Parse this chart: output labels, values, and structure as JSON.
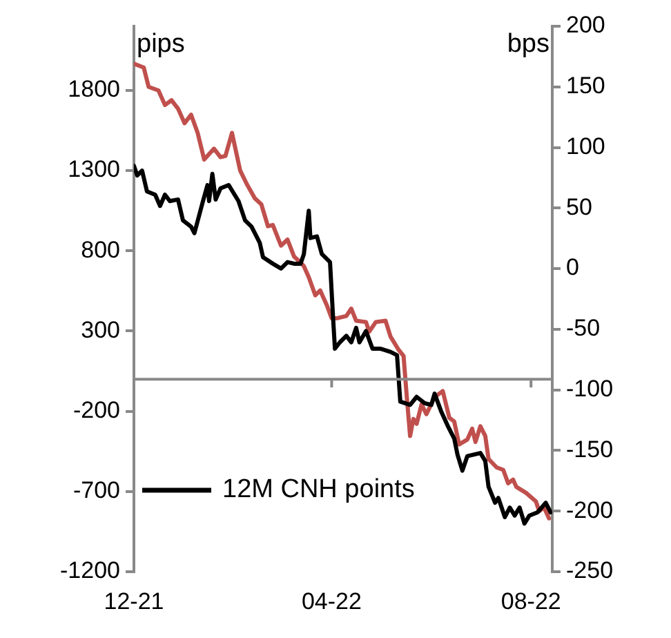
{
  "chart_data": {
    "type": "line",
    "ylabel": "pips",
    "y2label": "bps",
    "xlim": [
      "2021-12-01",
      "2022-08-14"
    ],
    "xticks": [
      {
        "value": "2021-12-01",
        "label": "12-21"
      },
      {
        "value": "2022-04-01",
        "label": "04-22"
      },
      {
        "value": "2022-08-01",
        "label": "08-22"
      }
    ],
    "ylim": [
      -1200,
      2200
    ],
    "yticks": [
      -1200,
      -700,
      -200,
      300,
      800,
      1300,
      1800
    ],
    "y2lim": [
      -250,
      200
    ],
    "y2ticks": [
      -250,
      -200,
      -150,
      -100,
      -50,
      0,
      50,
      100,
      150,
      200
    ],
    "grid": false,
    "legend": "bottom left",
    "marker": "none",
    "line_style": "solid",
    "series": [
      {
        "name": "12M CNH points",
        "color": "#000000",
        "x": [
          "2021-12-01",
          "2021-12-03",
          "2021-12-06",
          "2021-12-09",
          "2021-12-14",
          "2021-12-17",
          "2021-12-20",
          "2021-12-23",
          "2021-12-28",
          "2021-12-31",
          "2022-01-05",
          "2022-01-07",
          "2022-01-12",
          "2022-01-15",
          "2022-01-16",
          "2022-01-18",
          "2022-01-20",
          "2022-01-23",
          "2022-01-28",
          "2022-02-03",
          "2022-02-07",
          "2022-02-11",
          "2022-02-16",
          "2022-02-18",
          "2022-02-24",
          "2022-03-01",
          "2022-03-05",
          "2022-03-09",
          "2022-03-13",
          "2022-03-15",
          "2022-03-18",
          "2022-03-19",
          "2022-03-23",
          "2022-03-26",
          "2022-03-31",
          "2022-04-02",
          "2022-04-03",
          "2022-04-06",
          "2022-04-10",
          "2022-04-13",
          "2022-04-16",
          "2022-04-18",
          "2022-04-22",
          "2022-04-26",
          "2022-05-01",
          "2022-05-07",
          "2022-05-11",
          "2022-05-13",
          "2022-05-19",
          "2022-05-23",
          "2022-05-28",
          "2022-06-01",
          "2022-06-03",
          "2022-06-07",
          "2022-06-11",
          "2022-06-15",
          "2022-06-17",
          "2022-06-20",
          "2022-06-23",
          "2022-06-27",
          "2022-07-01",
          "2022-07-04",
          "2022-07-06",
          "2022-07-10",
          "2022-07-12",
          "2022-07-16",
          "2022-07-19",
          "2022-07-22",
          "2022-07-25",
          "2022-07-28",
          "2022-07-31",
          "2022-08-05",
          "2022-08-10",
          "2022-08-13"
        ],
        "values": [
          1330,
          1270,
          1300,
          1170,
          1150,
          1080,
          1150,
          1110,
          1120,
          990,
          950,
          910,
          1100,
          1210,
          1110,
          1280,
          1120,
          1190,
          1210,
          1110,
          990,
          950,
          850,
          760,
          720,
          690,
          730,
          720,
          720,
          780,
          1050,
          880,
          890,
          780,
          730,
          360,
          190,
          230,
          270,
          230,
          320,
          230,
          300,
          190,
          190,
          170,
          150,
          -140,
          -160,
          -110,
          -150,
          -160,
          -90,
          -200,
          -290,
          -370,
          -470,
          -570,
          -480,
          -470,
          -460,
          -510,
          -670,
          -770,
          -740,
          -860,
          -800,
          -850,
          -800,
          -900,
          -850,
          -830,
          -770,
          -830
        ]
      },
      {
        "color": "#c0504d",
        "axis": "y2",
        "x": [
          "2021-12-01",
          "2021-12-07",
          "2021-12-10",
          "2021-12-16",
          "2021-12-20",
          "2021-12-24",
          "2021-12-28",
          "2022-01-01",
          "2022-01-05",
          "2022-01-09",
          "2022-01-13",
          "2022-01-19",
          "2022-01-23",
          "2022-01-26",
          "2022-01-30",
          "2022-02-04",
          "2022-02-08",
          "2022-02-13",
          "2022-02-17",
          "2022-02-21",
          "2022-02-24",
          "2022-03-01",
          "2022-03-05",
          "2022-03-09",
          "2022-03-13",
          "2022-03-15",
          "2022-03-18",
          "2022-03-22",
          "2022-03-25",
          "2022-03-29",
          "2022-04-01",
          "2022-04-04",
          "2022-04-10",
          "2022-04-13",
          "2022-04-16",
          "2022-04-22",
          "2022-04-24",
          "2022-04-28",
          "2022-05-04",
          "2022-05-07",
          "2022-05-12",
          "2022-05-15",
          "2022-05-17",
          "2022-05-19",
          "2022-05-21",
          "2022-05-23",
          "2022-05-26",
          "2022-05-29",
          "2022-06-03",
          "2022-06-08",
          "2022-06-12",
          "2022-06-15",
          "2022-06-18",
          "2022-06-23",
          "2022-06-26",
          "2022-06-28",
          "2022-07-01",
          "2022-07-04",
          "2022-07-06",
          "2022-07-11",
          "2022-07-15",
          "2022-07-18",
          "2022-07-21",
          "2022-07-23",
          "2022-07-29",
          "2022-08-04",
          "2022-08-06",
          "2022-08-09",
          "2022-08-12"
        ],
        "values": [
          169,
          166,
          150,
          147,
          135,
          139,
          132,
          120,
          127,
          112,
          90,
          99,
          92,
          93,
          112,
          81,
          70,
          58,
          53,
          35,
          36,
          19,
          24,
          10,
          5,
          2,
          -7,
          -22,
          -18,
          -30,
          -41,
          -41,
          -39,
          -33,
          -43,
          -44,
          -52,
          -44,
          -43,
          -56,
          -67,
          -72,
          -106,
          -138,
          -124,
          -128,
          -112,
          -120,
          -106,
          -101,
          -123,
          -126,
          -145,
          -141,
          -132,
          -143,
          -130,
          -138,
          -157,
          -164,
          -166,
          -177,
          -174,
          -180,
          -185,
          -192,
          -200,
          -197,
          -206
        ]
      }
    ]
  }
}
